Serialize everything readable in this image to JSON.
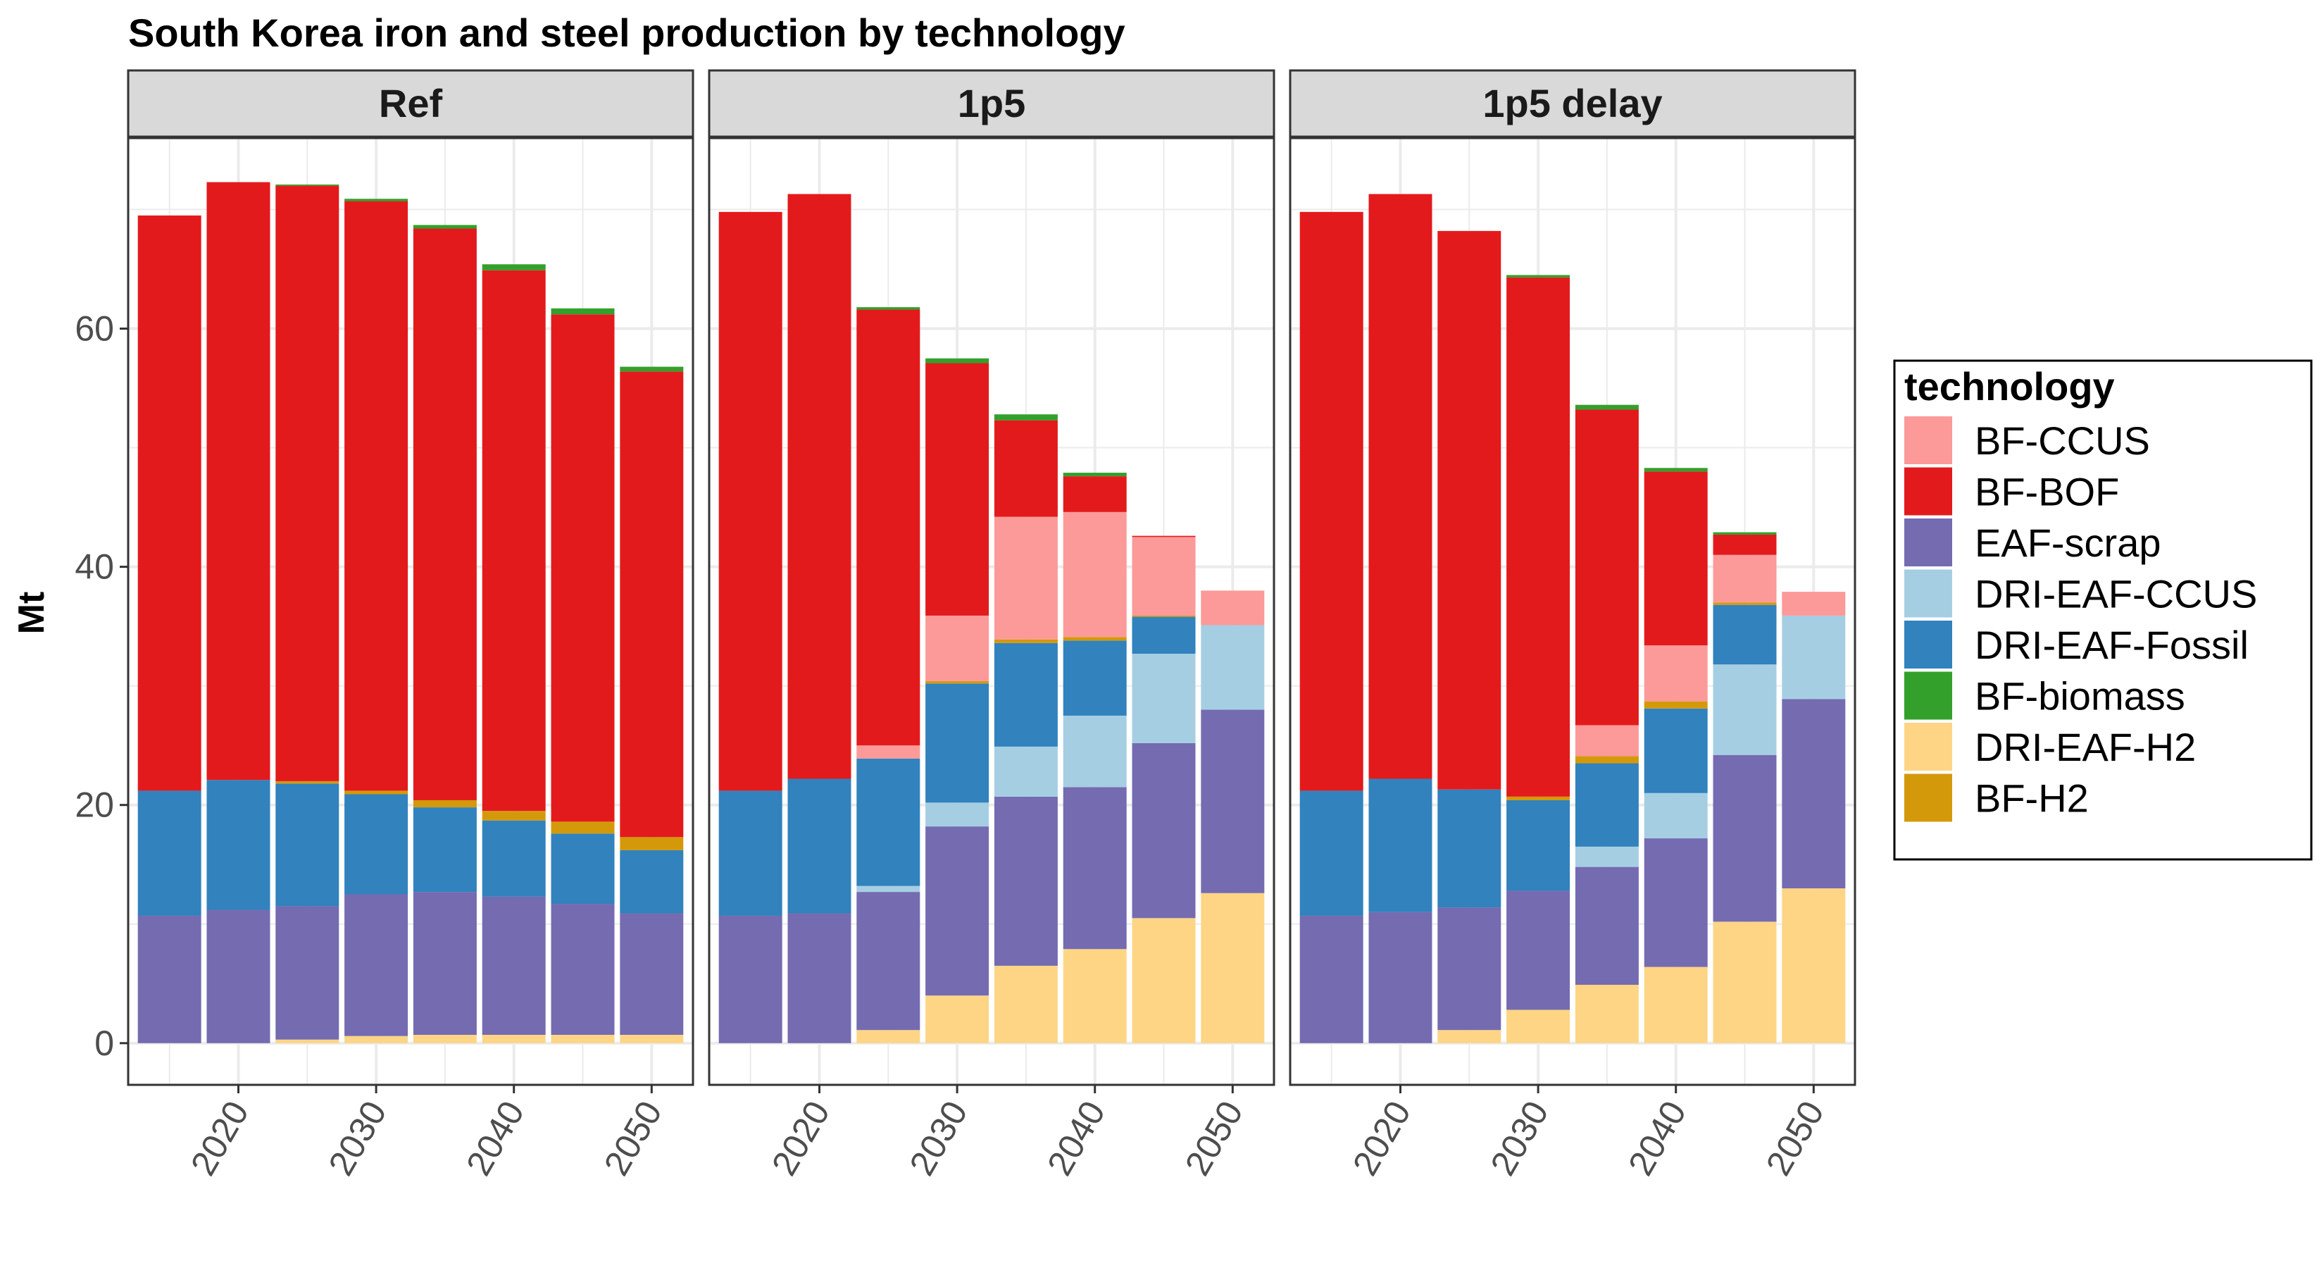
{
  "chart_data": {
    "type": "bar",
    "stacked": true,
    "title": "South Korea iron and steel production by technology",
    "ylabel": "Mt",
    "xlabel": "",
    "ylim": [
      -3.5,
      76
    ],
    "yticks": [
      0,
      20,
      40,
      60
    ],
    "xlim": [
      2012,
      2053
    ],
    "xticks": [
      2020,
      2030,
      2040,
      2050
    ],
    "x_tick_rotation": -60,
    "grid": true,
    "legend_position": "right",
    "legend_title": "technology",
    "technologies": [
      {
        "name": "BF-CCUS",
        "color": "#FB9A99"
      },
      {
        "name": "BF-BOF",
        "color": "#E31A1C"
      },
      {
        "name": "EAF-scrap",
        "color": "#756BB1"
      },
      {
        "name": "DRI-EAF-CCUS",
        "color": "#A6CEE3"
      },
      {
        "name": "DRI-EAF-Fossil",
        "color": "#3182BD"
      },
      {
        "name": "BF-biomass",
        "color": "#33A02C"
      },
      {
        "name": "DRI-EAF-H2",
        "color": "#FDD585"
      },
      {
        "name": "BF-H2",
        "color": "#D4990A"
      }
    ],
    "stack_order": [
      "DRI-EAF-H2",
      "EAF-scrap",
      "DRI-EAF-CCUS",
      "DRI-EAF-Fossil",
      "BF-H2",
      "BF-CCUS",
      "BF-BOF",
      "BF-biomass"
    ],
    "x": [
      2015,
      2020,
      2025,
      2030,
      2035,
      2040,
      2045,
      2050
    ],
    "panels": [
      {
        "name": "Ref",
        "series": {
          "DRI-EAF-H2": [
            0,
            0,
            0.3,
            0.6,
            0.7,
            0.7,
            0.7,
            0.7
          ],
          "EAF-scrap": [
            10.7,
            11.2,
            11.2,
            11.9,
            12.0,
            11.6,
            11.0,
            10.2
          ],
          "DRI-EAF-CCUS": [
            0,
            0,
            0,
            0,
            0,
            0,
            0,
            0
          ],
          "DRI-EAF-Fossil": [
            10.5,
            10.9,
            10.3,
            8.4,
            7.1,
            6.4,
            5.9,
            5.3
          ],
          "BF-H2": [
            0,
            0,
            0.2,
            0.3,
            0.6,
            0.8,
            1.0,
            1.1
          ],
          "BF-CCUS": [
            0,
            0,
            0,
            0,
            0,
            0,
            0,
            0
          ],
          "BF-BOF": [
            48.3,
            50.2,
            50.0,
            49.5,
            48.0,
            45.4,
            42.6,
            39.1
          ],
          "BF-biomass": [
            0,
            0,
            0.1,
            0.2,
            0.3,
            0.5,
            0.5,
            0.4
          ]
        }
      },
      {
        "name": "1p5",
        "series": {
          "DRI-EAF-H2": [
            0,
            0,
            1.1,
            4.0,
            6.5,
            7.9,
            10.5,
            12.6
          ],
          "EAF-scrap": [
            10.7,
            10.9,
            11.6,
            14.2,
            14.2,
            13.6,
            14.7,
            15.4
          ],
          "DRI-EAF-CCUS": [
            0,
            0,
            0.5,
            2.0,
            4.2,
            6.0,
            7.5,
            7.1
          ],
          "DRI-EAF-Fossil": [
            10.5,
            11.3,
            10.7,
            10.0,
            8.7,
            6.3,
            3.1,
            0
          ],
          "BF-H2": [
            0,
            0,
            0,
            0.2,
            0.3,
            0.3,
            0.1,
            0
          ],
          "BF-CCUS": [
            0,
            0,
            1.1,
            5.5,
            10.3,
            10.5,
            6.6,
            2.9
          ],
          "BF-BOF": [
            48.6,
            49.1,
            36.6,
            21.2,
            8.1,
            3.0,
            0.1,
            0
          ],
          "BF-biomass": [
            0,
            0,
            0.2,
            0.4,
            0.5,
            0.3,
            0,
            0
          ]
        }
      },
      {
        "name": "1p5 delay",
        "series": {
          "DRI-EAF-H2": [
            0,
            0,
            1.1,
            2.8,
            4.9,
            6.4,
            10.2,
            13.0
          ],
          "EAF-scrap": [
            10.7,
            11.0,
            10.3,
            10.0,
            9.9,
            10.8,
            14.0,
            15.9
          ],
          "DRI-EAF-CCUS": [
            0,
            0,
            0,
            0,
            1.7,
            3.8,
            7.6,
            7.0
          ],
          "DRI-EAF-Fossil": [
            10.5,
            11.2,
            9.9,
            7.6,
            7.0,
            7.1,
            5.0,
            0
          ],
          "BF-H2": [
            0,
            0,
            0,
            0.3,
            0.6,
            0.6,
            0.2,
            0
          ],
          "BF-CCUS": [
            0,
            0,
            0,
            0,
            2.6,
            4.7,
            4.0,
            2.0
          ],
          "BF-BOF": [
            48.6,
            49.1,
            46.9,
            43.6,
            26.5,
            14.6,
            1.7,
            0
          ],
          "BF-biomass": [
            0,
            0,
            0,
            0.2,
            0.4,
            0.3,
            0.2,
            0
          ]
        }
      }
    ]
  }
}
